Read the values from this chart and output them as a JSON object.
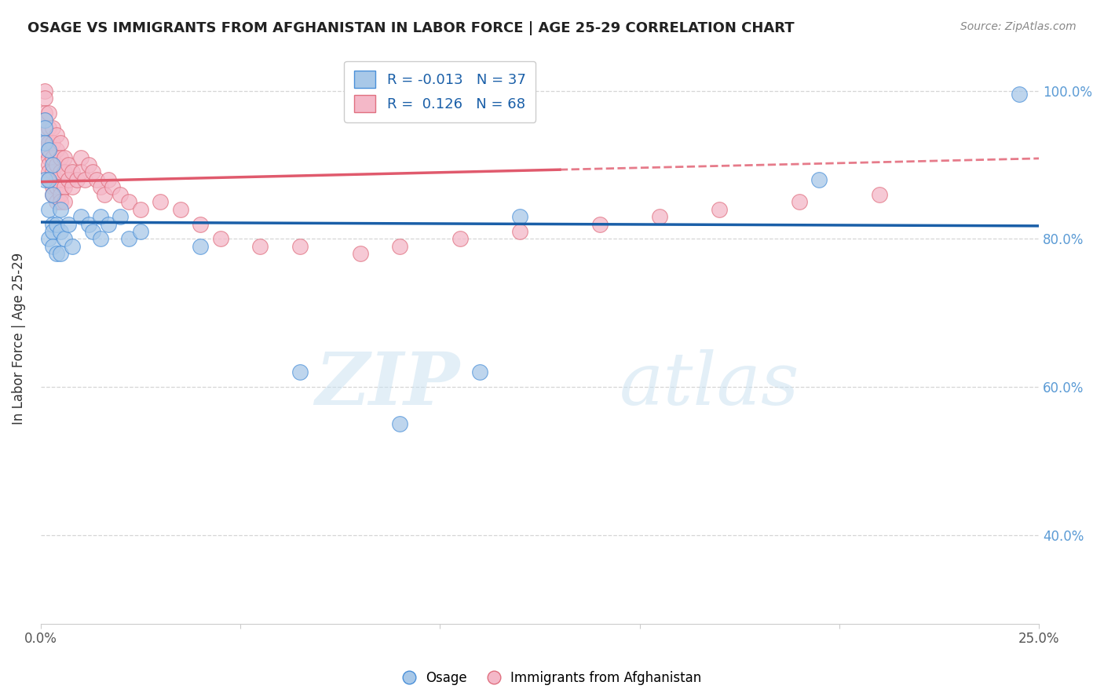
{
  "title": "OSAGE VS IMMIGRANTS FROM AFGHANISTAN IN LABOR FORCE | AGE 25-29 CORRELATION CHART",
  "source": "Source: ZipAtlas.com",
  "ylabel": "In Labor Force | Age 25-29",
  "xlim": [
    0.0,
    0.25
  ],
  "ylim": [
    0.28,
    1.05
  ],
  "yticks": [
    0.4,
    0.6,
    0.8,
    1.0
  ],
  "yticklabels": [
    "40.0%",
    "60.0%",
    "80.0%",
    "100.0%"
  ],
  "watermark_zip": "ZIP",
  "watermark_atlas": "atlas",
  "legend_r1": "R = -0.013",
  "legend_n1": "N = 37",
  "legend_r2": "R =  0.126",
  "legend_n2": "N = 68",
  "osage_color": "#a8c8e8",
  "afghan_color": "#f4b8c8",
  "osage_edge_color": "#4a90d9",
  "afghan_edge_color": "#e07080",
  "osage_line_color": "#1a5fa8",
  "afghan_line_color": "#e05a6d",
  "background_color": "#ffffff",
  "grid_color": "#cccccc",
  "osage_x": [
    0.001,
    0.001,
    0.001,
    0.001,
    0.002,
    0.002,
    0.002,
    0.002,
    0.003,
    0.003,
    0.003,
    0.003,
    0.003,
    0.004,
    0.004,
    0.005,
    0.005,
    0.005,
    0.006,
    0.007,
    0.008,
    0.01,
    0.012,
    0.013,
    0.015,
    0.015,
    0.017,
    0.02,
    0.022,
    0.025,
    0.04,
    0.065,
    0.09,
    0.11,
    0.12,
    0.195,
    0.245
  ],
  "osage_y": [
    0.96,
    0.95,
    0.93,
    0.88,
    0.92,
    0.88,
    0.84,
    0.8,
    0.9,
    0.86,
    0.82,
    0.81,
    0.79,
    0.82,
    0.78,
    0.84,
    0.81,
    0.78,
    0.8,
    0.82,
    0.79,
    0.83,
    0.82,
    0.81,
    0.83,
    0.8,
    0.82,
    0.83,
    0.8,
    0.81,
    0.79,
    0.62,
    0.55,
    0.62,
    0.83,
    0.88,
    0.995
  ],
  "afghan_x": [
    0.001,
    0.001,
    0.001,
    0.001,
    0.001,
    0.001,
    0.002,
    0.002,
    0.002,
    0.002,
    0.002,
    0.002,
    0.002,
    0.003,
    0.003,
    0.003,
    0.003,
    0.003,
    0.003,
    0.004,
    0.004,
    0.004,
    0.004,
    0.004,
    0.004,
    0.005,
    0.005,
    0.005,
    0.005,
    0.005,
    0.005,
    0.006,
    0.006,
    0.006,
    0.006,
    0.007,
    0.007,
    0.008,
    0.008,
    0.009,
    0.01,
    0.01,
    0.011,
    0.012,
    0.013,
    0.014,
    0.015,
    0.016,
    0.017,
    0.018,
    0.02,
    0.022,
    0.025,
    0.03,
    0.035,
    0.04,
    0.045,
    0.055,
    0.065,
    0.08,
    0.09,
    0.105,
    0.12,
    0.14,
    0.155,
    0.17,
    0.19,
    0.21
  ],
  "afghan_y": [
    1.0,
    0.99,
    0.97,
    0.96,
    0.94,
    0.92,
    0.97,
    0.95,
    0.93,
    0.91,
    0.9,
    0.89,
    0.88,
    0.95,
    0.93,
    0.91,
    0.89,
    0.87,
    0.86,
    0.94,
    0.92,
    0.9,
    0.88,
    0.87,
    0.85,
    0.93,
    0.91,
    0.89,
    0.87,
    0.86,
    0.85,
    0.91,
    0.89,
    0.87,
    0.85,
    0.9,
    0.88,
    0.89,
    0.87,
    0.88,
    0.91,
    0.89,
    0.88,
    0.9,
    0.89,
    0.88,
    0.87,
    0.86,
    0.88,
    0.87,
    0.86,
    0.85,
    0.84,
    0.85,
    0.84,
    0.82,
    0.8,
    0.79,
    0.79,
    0.78,
    0.79,
    0.8,
    0.81,
    0.82,
    0.83,
    0.84,
    0.85,
    0.86
  ]
}
